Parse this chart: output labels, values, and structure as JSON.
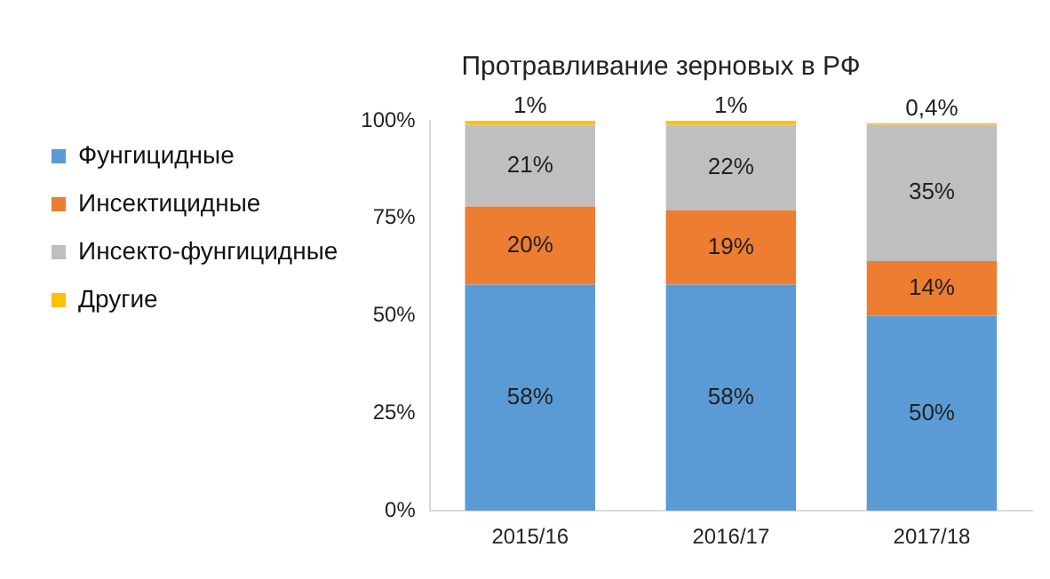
{
  "chart_data": {
    "type": "bar",
    "title": "Протравливание зерновых в РФ",
    "categories": [
      "2015/16",
      "2016/17",
      "2017/18"
    ],
    "stacked": true,
    "legend": "left",
    "grid": false,
    "ylim": [
      0,
      100
    ],
    "yticks": [
      {
        "value": 0,
        "label": "0%"
      },
      {
        "value": 25,
        "label": "25%"
      },
      {
        "value": 50,
        "label": "50%"
      },
      {
        "value": 75,
        "label": "75%"
      },
      {
        "value": 100,
        "label": "100%"
      }
    ],
    "series": [
      {
        "name": "Фунгицидные",
        "color": "#5b9bd5",
        "values": [
          58,
          58,
          50
        ],
        "value_labels": [
          "58%",
          "58%",
          "50%"
        ]
      },
      {
        "name": "Инсектицидные",
        "color": "#ed7d31",
        "values": [
          20,
          19,
          14
        ],
        "value_labels": [
          "20%",
          "19%",
          "14%"
        ]
      },
      {
        "name": "Инсекто-фунгицидные",
        "color": "#bfbfbf",
        "values": [
          21,
          22,
          35
        ],
        "value_labels": [
          "21%",
          "22%",
          "35%"
        ]
      },
      {
        "name": "Другие",
        "color": "#ffc000",
        "values": [
          1,
          1,
          0.4
        ],
        "value_labels": [
          "1%",
          "1%",
          "0,4%"
        ]
      }
    ]
  }
}
